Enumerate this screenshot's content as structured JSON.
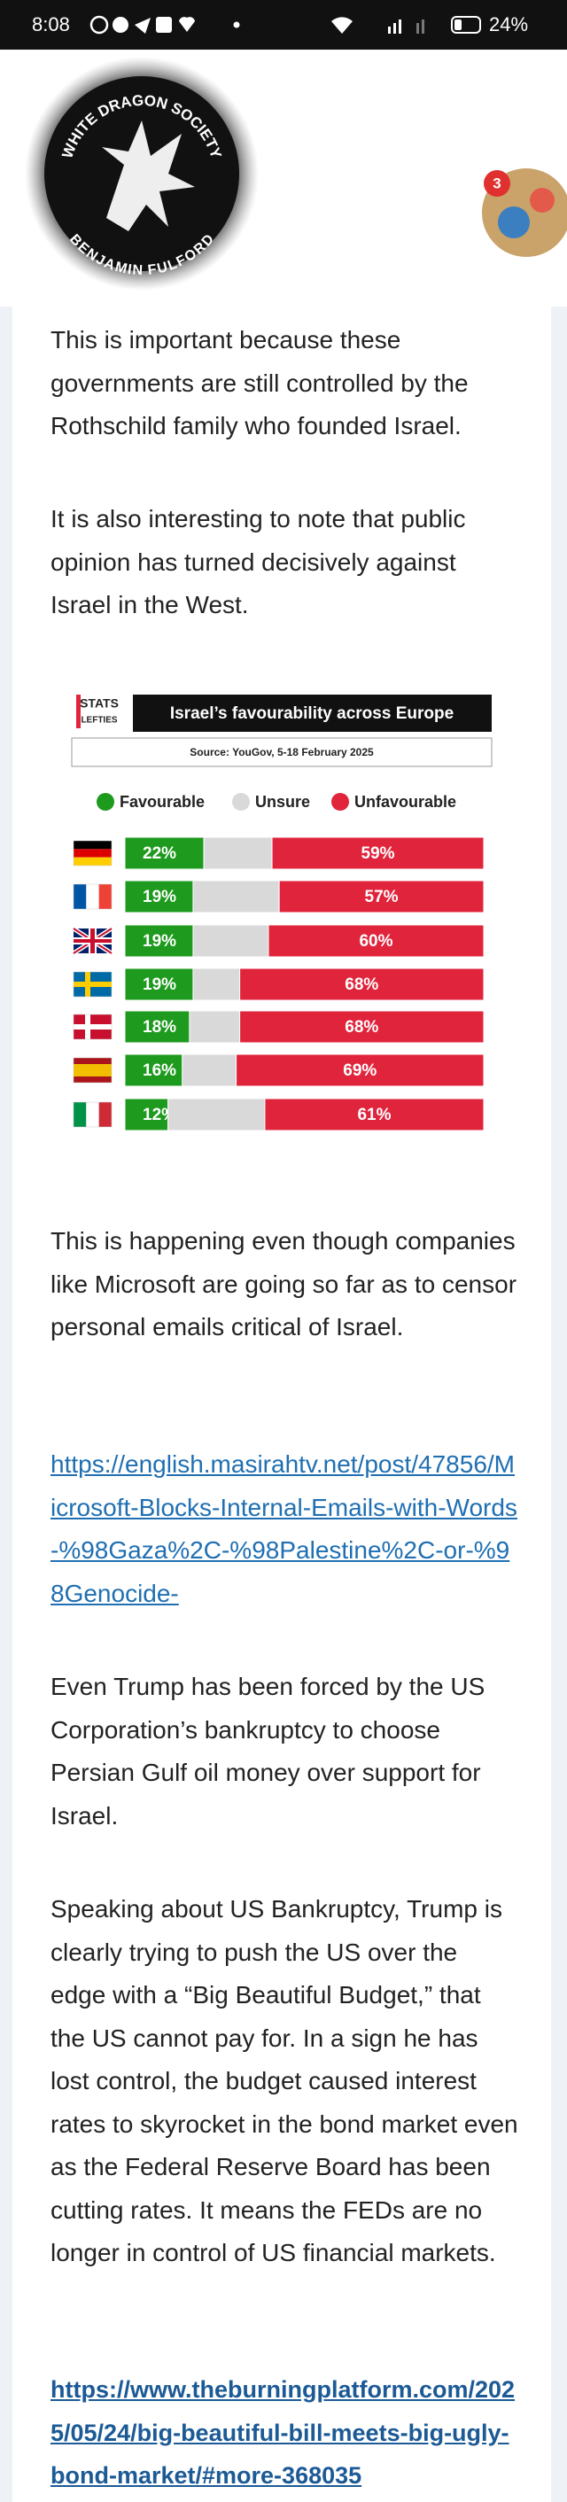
{
  "status_bar": {
    "time": "8:08",
    "battery": "24%"
  },
  "header": {
    "logo_top": "WHITE DRAGON SOCIETY",
    "logo_bottom": "BENJAMIN FULFORD",
    "badge": "3"
  },
  "article": {
    "paragraphs": [
      "This is important because these governments are still controlled by the Rothschild family who founded Israel.",
      "It is also interesting to note that public opinion has turned decisively against Israel in the West.",
      "This is happening even though companies like Microsoft are going so far as to censor personal emails critical of Israel.",
      "https://english.masirahtv.net/post/47856/Microsoft-Blocks-Internal-Emails-with-Words-%98Gaza%2C-%98Palestine%2C-or-%98Genocide-",
      "Even Trump has been forced by the US Corporation’s bankruptcy to choose Persian Gulf oil money over support for Israel.",
      "Speaking about US Bankruptcy, Trump is clearly trying to push the US over the edge with a “Big Beautiful Budget,” that the US cannot pay for. In a sign he has lost control, the budget caused interest rates to skyrocket in the bond market even as the Federal Reserve Board has been cutting rates. It means the FEDs are no longer in control of US financial markets.",
      "https://www.theburningplatform.com/2025/05/24/big-beautiful-bill-meets-big-ugly-bond-market/#more-368035"
    ]
  },
  "chart_data": {
    "type": "stacked-bar-horizontal",
    "logo": [
      "STATS",
      "LEFTIES"
    ],
    "title": "Israel’s favourability across Europe",
    "subtitle": "Source: YouGov, 5-18 February 2025",
    "categories": [
      null,
      null,
      null,
      null,
      null,
      null,
      null
    ],
    "xlim": [
      0,
      100
    ],
    "series": [
      {
        "name": "Favourable",
        "color": "#1e9a1e",
        "values": [
          22,
          19,
          19,
          19,
          18,
          16,
          12
        ],
        "value_labels": [
          "22%",
          "19%",
          "19%",
          "19%",
          "18%",
          "16%",
          "12%"
        ]
      },
      {
        "name": "Unsure",
        "color": "#d9d9d9",
        "values": [
          19,
          24,
          21,
          13,
          14,
          15,
          27
        ]
      },
      {
        "name": "Unfavourable",
        "color": "#e0243c",
        "values": [
          59,
          57,
          60,
          68,
          68,
          69,
          61
        ],
        "value_labels": [
          "59%",
          "57%",
          "60%",
          "68%",
          "68%",
          "69%",
          "61%"
        ]
      }
    ]
  }
}
